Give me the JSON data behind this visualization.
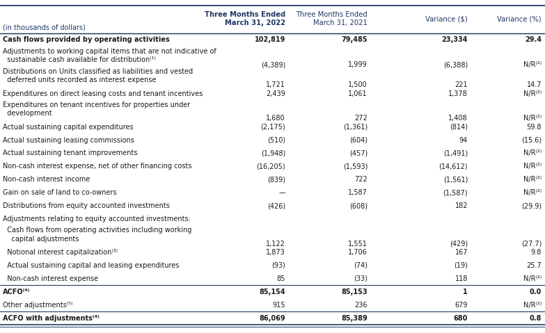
{
  "header_col": "(in thousands of dollars)",
  "col_headers": [
    "Three Months Ended\nMarch 31, 2022",
    "Three Months Ended\nMarch 31, 2021",
    "Variance ($)",
    "Variance (%)"
  ],
  "col_header_bold": [
    true,
    false,
    false,
    false
  ],
  "rows": [
    {
      "label": "Cash flows provided by operating activities",
      "vals": [
        "102,819",
        "79,485",
        "23,334",
        "29.4"
      ],
      "bold": true,
      "multiline": false,
      "top_line": true,
      "bottom_line": false
    },
    {
      "label": "Adjustments to working capital items that are not indicative of\n  sustainable cash available for distribution⁽¹⁾",
      "vals": [
        "(4,389)",
        "1,999",
        "(6,388)",
        "N/R⁽²⁾"
      ],
      "bold": false,
      "multiline": true,
      "top_line": false,
      "bottom_line": false
    },
    {
      "label": "Distributions on Units classified as liabilities and vested\n  deferred units recorded as interest expense",
      "vals": [
        "1,721",
        "1,500",
        "221",
        "14.7"
      ],
      "bold": false,
      "multiline": true,
      "top_line": false,
      "bottom_line": false
    },
    {
      "label": "Expenditures on direct leasing costs and tenant incentives",
      "vals": [
        "2,439",
        "1,061",
        "1,378",
        "N/R⁽²⁾"
      ],
      "bold": false,
      "multiline": false,
      "top_line": false,
      "bottom_line": false
    },
    {
      "label": "Expenditures on tenant incentives for properties under\n  development",
      "vals": [
        "1,680",
        "272",
        "1,408",
        "N/R⁽²⁾"
      ],
      "bold": false,
      "multiline": true,
      "top_line": false,
      "bottom_line": false
    },
    {
      "label": "Actual sustaining capital expenditures",
      "vals": [
        "(2,175)",
        "(1,361)",
        "(814)",
        "59.8"
      ],
      "bold": false,
      "multiline": false,
      "top_line": false,
      "bottom_line": false
    },
    {
      "label": "Actual sustaining leasing commissions",
      "vals": [
        "(510)",
        "(604)",
        "94",
        "(15.6)"
      ],
      "bold": false,
      "multiline": false,
      "top_line": false,
      "bottom_line": false
    },
    {
      "label": "Actual sustaining tenant improvements",
      "vals": [
        "(1,948)",
        "(457)",
        "(1,491)",
        "N/R⁽²⁾"
      ],
      "bold": false,
      "multiline": false,
      "top_line": false,
      "bottom_line": false
    },
    {
      "label": "Non-cash interest expense, net of other financing costs",
      "vals": [
        "(16,205)",
        "(1,593)",
        "(14,612)",
        "N/R⁽²⁾"
      ],
      "bold": false,
      "multiline": false,
      "top_line": false,
      "bottom_line": false
    },
    {
      "label": "Non-cash interest income",
      "vals": [
        "(839)",
        "722",
        "(1,561)",
        "N/R⁽²⁾"
      ],
      "bold": false,
      "multiline": false,
      "top_line": false,
      "bottom_line": false
    },
    {
      "label": "Gain on sale of land to co-owners",
      "vals": [
        "—",
        "1,587",
        "(1,587)",
        "N/R⁽²⁾"
      ],
      "bold": false,
      "multiline": false,
      "top_line": false,
      "bottom_line": false
    },
    {
      "label": "Distributions from equity accounted investments",
      "vals": [
        "(426)",
        "(608)",
        "182",
        "(29.9)"
      ],
      "bold": false,
      "multiline": false,
      "top_line": false,
      "bottom_line": false
    },
    {
      "label": "Adjustments relating to equity accounted investments:",
      "vals": [
        "",
        "",
        "",
        ""
      ],
      "bold": false,
      "multiline": false,
      "top_line": false,
      "bottom_line": false
    },
    {
      "label": "  Cash flows from operating activities including working\n    capital adjustments",
      "vals": [
        "1,122",
        "1,551",
        "(429)",
        "(27.7)"
      ],
      "bold": false,
      "multiline": true,
      "top_line": false,
      "bottom_line": false
    },
    {
      "label": "  Notional interest capitalization⁽³⁾",
      "vals": [
        "1,873",
        "1,706",
        "167",
        "9.8"
      ],
      "bold": false,
      "multiline": false,
      "top_line": false,
      "bottom_line": false
    },
    {
      "label": "  Actual sustaining capital and leasing expenditures",
      "vals": [
        "(93)",
        "(74)",
        "(19)",
        "25.7"
      ],
      "bold": false,
      "multiline": false,
      "top_line": false,
      "bottom_line": false
    },
    {
      "label": "  Non-cash interest expense",
      "vals": [
        "85",
        "(33)",
        "118",
        "N/R⁽²⁾"
      ],
      "bold": false,
      "multiline": false,
      "top_line": false,
      "bottom_line": false
    },
    {
      "label": "ACFO⁽⁴⁾",
      "vals": [
        "85,154",
        "85,153",
        "1",
        "0.0"
      ],
      "bold": true,
      "multiline": false,
      "top_line": true,
      "bottom_line": false
    },
    {
      "label": "Other adjustments⁽⁵⁾",
      "vals": [
        "915",
        "236",
        "679",
        "N/R⁽²⁾"
      ],
      "bold": false,
      "multiline": false,
      "top_line": false,
      "bottom_line": false
    },
    {
      "label": "ACFO with adjustments⁽⁴⁾",
      "vals": [
        "86,069",
        "85,389",
        "680",
        "0.8"
      ],
      "bold": true,
      "multiline": false,
      "top_line": true,
      "bottom_line": true
    }
  ],
  "bg_color": "#ffffff",
  "header_text_color": "#1f3864",
  "body_text_color": "#1a1a1a",
  "line_color": "#1f3864",
  "font_size": 7.0,
  "header_font_size": 7.2
}
